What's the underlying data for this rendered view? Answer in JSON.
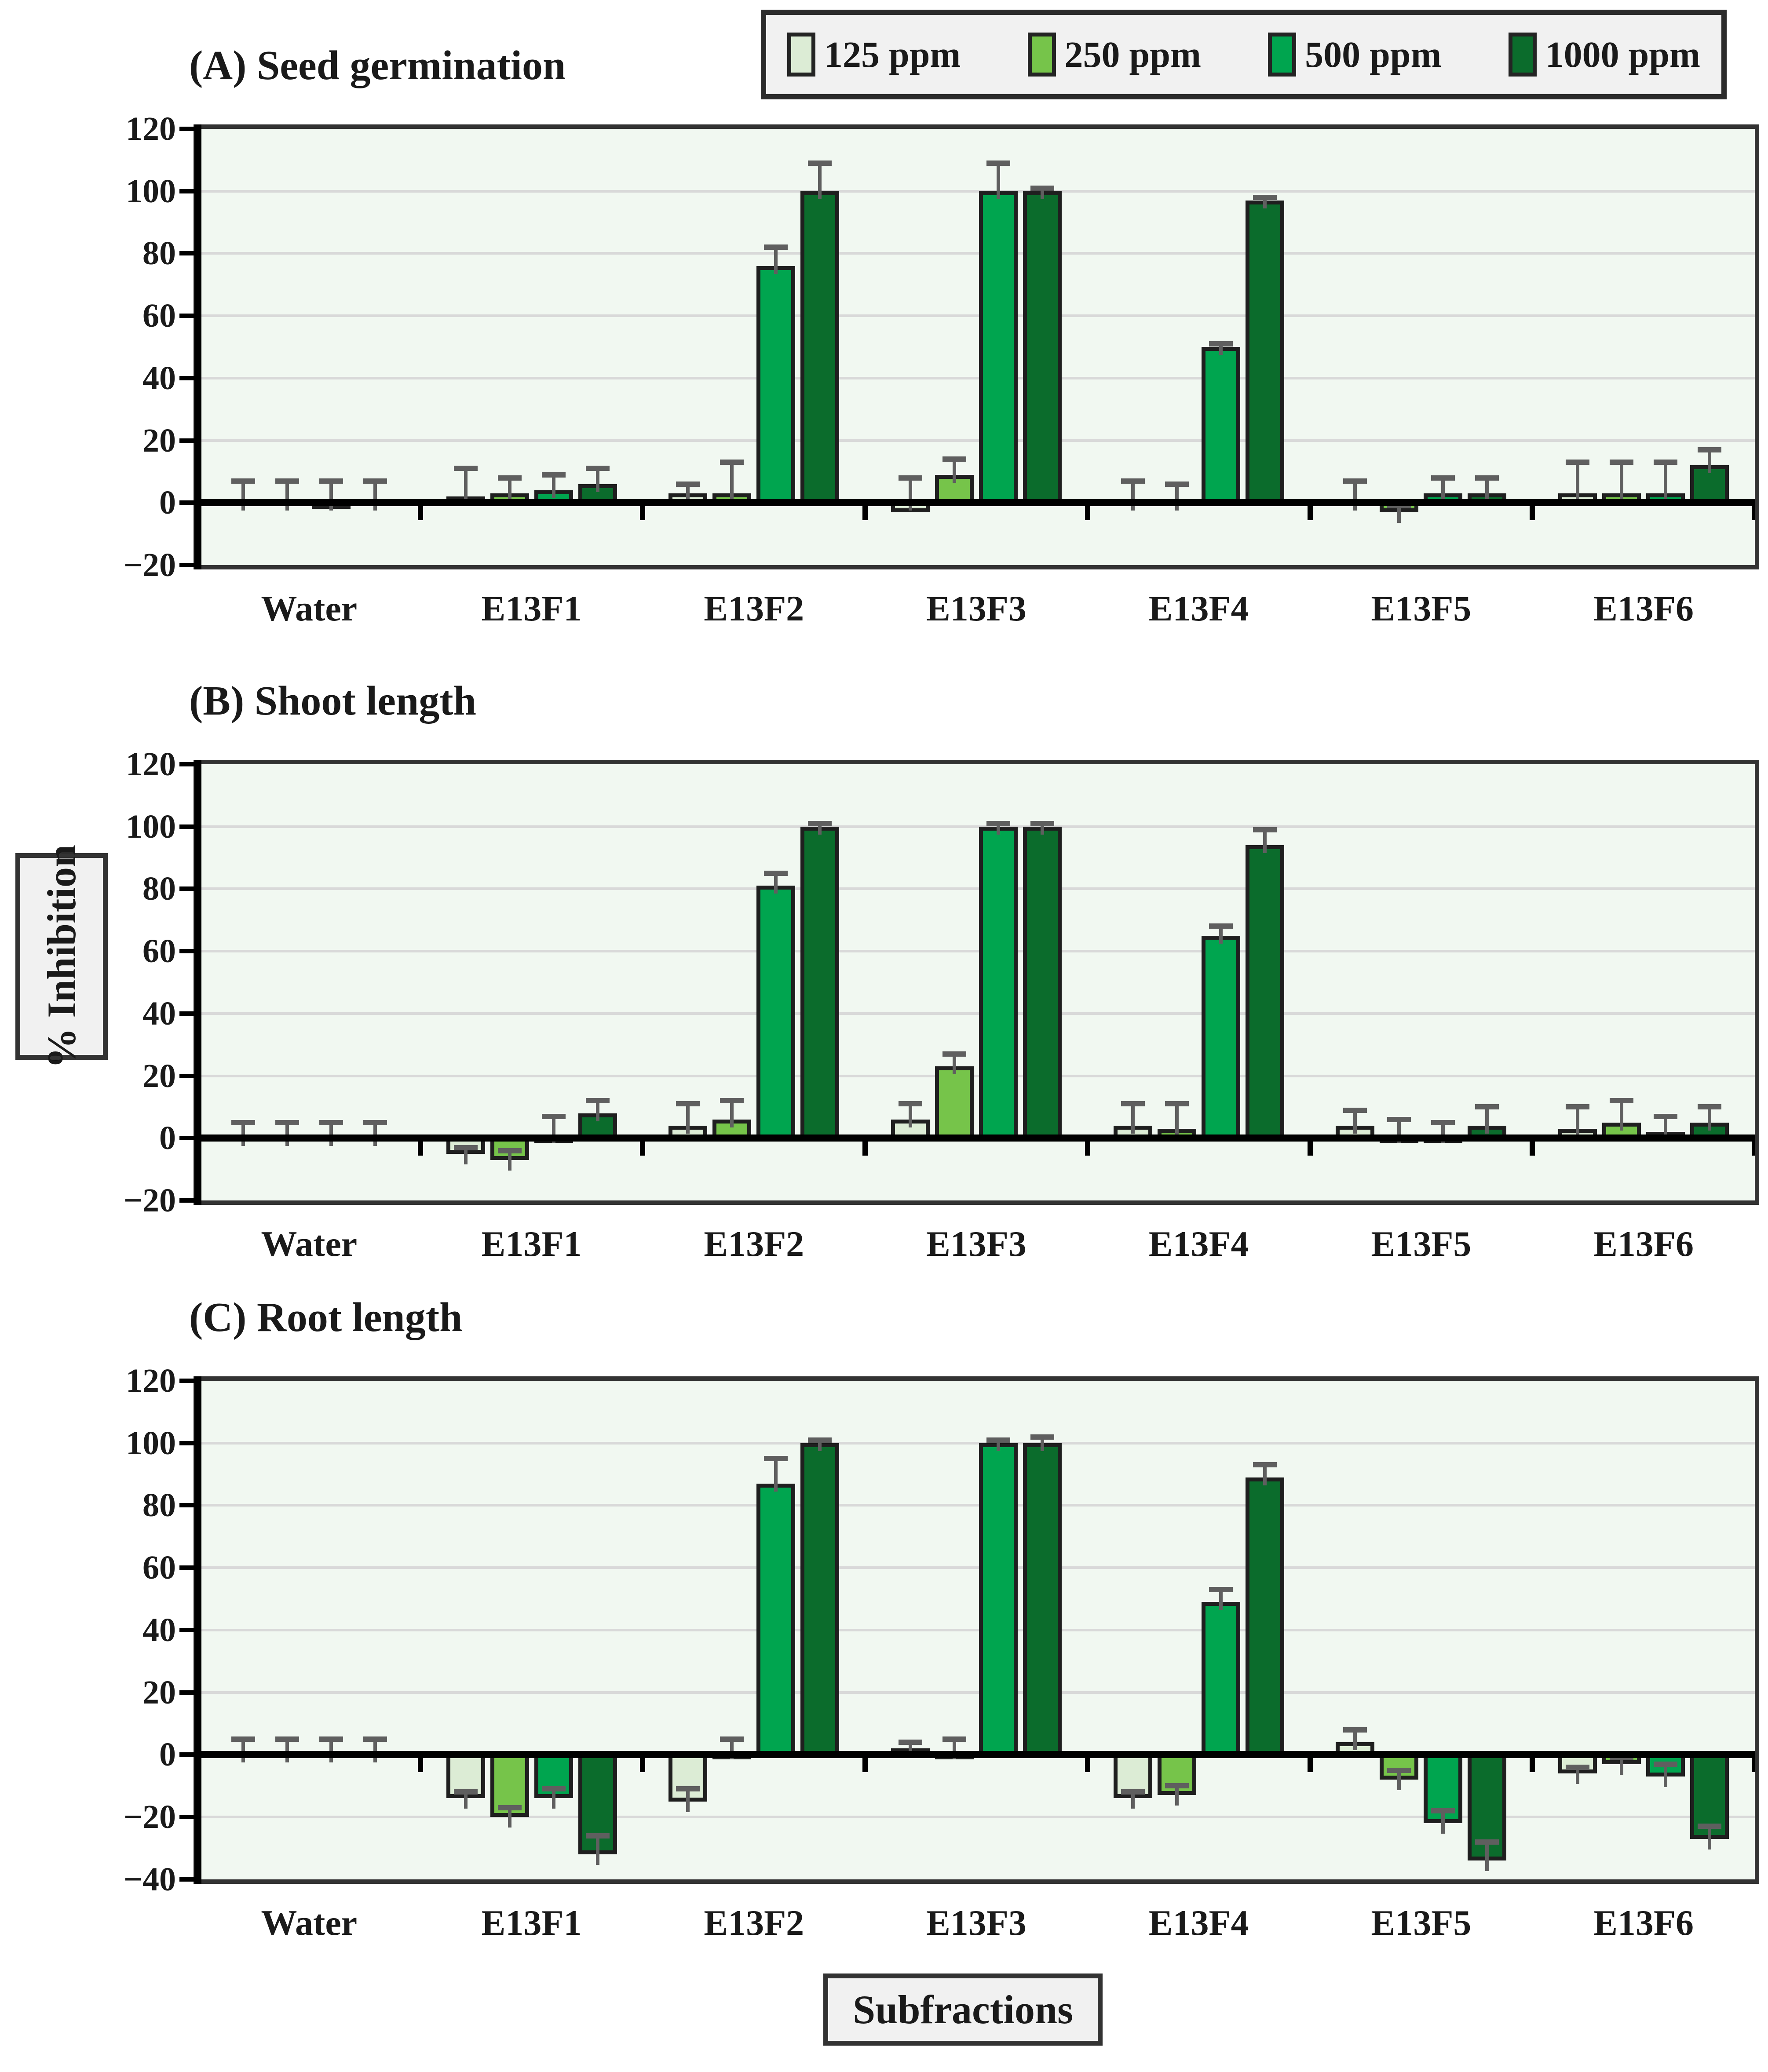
{
  "figure": {
    "y_axis_label": "% Inhibition",
    "x_axis_label": "Subfractions"
  },
  "legend": {
    "position": "top-right",
    "items": [
      {
        "label": "125 ppm",
        "color": "#dcecd5"
      },
      {
        "label": "250 ppm",
        "color": "#76c44a"
      },
      {
        "label": "500 ppm",
        "color": "#00a54f"
      },
      {
        "label": "1000 ppm",
        "color": "#0b6c2c"
      }
    ]
  },
  "colors": {
    "plot_background": "#f1f8f1",
    "gridline": "#d9d9d9",
    "bar_border": "#1f1f1f",
    "error_bar": "#5f5f5f",
    "axis": "#000000",
    "frame": "#333333"
  },
  "chart_data": [
    {
      "type": "bar",
      "title": "(A) Seed germination",
      "ylabel": "% Inhibition",
      "ylim": [
        -20,
        120
      ],
      "ytick_labels": [
        "120",
        "100",
        "80",
        "60",
        "40",
        "20",
        "0",
        "−20"
      ],
      "grid": true,
      "categories": [
        "Water",
        "E13F1",
        "E13F2",
        "E13F3",
        "E13F4",
        "E13F5",
        "E13F6"
      ],
      "series": [
        {
          "name": "125 ppm",
          "values": [
            0,
            2,
            3,
            -3,
            0,
            0,
            3
          ],
          "errors": [
            7,
            9,
            3,
            8,
            7,
            7,
            10
          ]
        },
        {
          "name": "250 ppm",
          "values": [
            0,
            3,
            3,
            9,
            0,
            -3,
            3
          ],
          "errors": [
            7,
            5,
            10,
            5,
            6,
            -2,
            10
          ]
        },
        {
          "name": "500 ppm",
          "values": [
            -1,
            4,
            76,
            100,
            50,
            3,
            3
          ],
          "errors": [
            7,
            5,
            6,
            9,
            1,
            5,
            10
          ]
        },
        {
          "name": "1000 ppm",
          "values": [
            0,
            6,
            100,
            100,
            97,
            3,
            12
          ],
          "errors": [
            7,
            5,
            9,
            1,
            1,
            5,
            5
          ]
        }
      ]
    },
    {
      "type": "bar",
      "title": "(B) Shoot length",
      "ylabel": "% Inhibition",
      "ylim": [
        -20,
        120
      ],
      "ytick_labels": [
        "120",
        "100",
        "80",
        "60",
        "40",
        "20",
        "0",
        "−20"
      ],
      "grid": true,
      "categories": [
        "Water",
        "E13F1",
        "E13F2",
        "E13F3",
        "E13F4",
        "E13F5",
        "E13F6"
      ],
      "series": [
        {
          "name": "125 ppm",
          "values": [
            0,
            -5,
            4,
            6,
            4,
            4,
            3
          ],
          "errors": [
            5,
            -2,
            7,
            5,
            7,
            5,
            7
          ]
        },
        {
          "name": "250 ppm",
          "values": [
            0,
            -7,
            6,
            23,
            3,
            1,
            5
          ],
          "errors": [
            5,
            -3,
            6,
            4,
            8,
            5,
            7
          ]
        },
        {
          "name": "500 ppm",
          "values": [
            0,
            1,
            81,
            100,
            65,
            1,
            2
          ],
          "errors": [
            5,
            6,
            4,
            1,
            3,
            4,
            5
          ]
        },
        {
          "name": "1000 ppm",
          "values": [
            0,
            8,
            100,
            100,
            94,
            4,
            5
          ],
          "errors": [
            5,
            4,
            1,
            1,
            5,
            6,
            5
          ]
        }
      ]
    },
    {
      "type": "bar",
      "title": "(C) Root length",
      "ylabel": "% Inhibition",
      "ylim": [
        -40,
        120
      ],
      "ytick_labels": [
        "120",
        "100",
        "80",
        "60",
        "40",
        "20",
        "0",
        "−20",
        "−40"
      ],
      "grid": true,
      "categories": [
        "Water",
        "E13F1",
        "E13F2",
        "E13F3",
        "E13F4",
        "E13F5",
        "E13F6"
      ],
      "series": [
        {
          "name": "125 ppm",
          "values": [
            0,
            -14,
            -15,
            2,
            -14,
            4,
            -6
          ],
          "errors": [
            5,
            -2,
            -4,
            2,
            -2,
            4,
            -2
          ]
        },
        {
          "name": "250 ppm",
          "values": [
            0,
            -20,
            1,
            1,
            -13,
            -8,
            -3
          ],
          "errors": [
            5,
            -3,
            4,
            4,
            -3,
            -3,
            -2
          ]
        },
        {
          "name": "500 ppm",
          "values": [
            0,
            -14,
            87,
            100,
            49,
            -22,
            -7
          ],
          "errors": [
            5,
            -3,
            8,
            1,
            4,
            -4,
            -4
          ]
        },
        {
          "name": "1000 ppm",
          "values": [
            0,
            -32,
            100,
            100,
            89,
            -34,
            -27
          ],
          "errors": [
            5,
            -6,
            1,
            2,
            4,
            -6,
            -4
          ]
        }
      ]
    }
  ]
}
